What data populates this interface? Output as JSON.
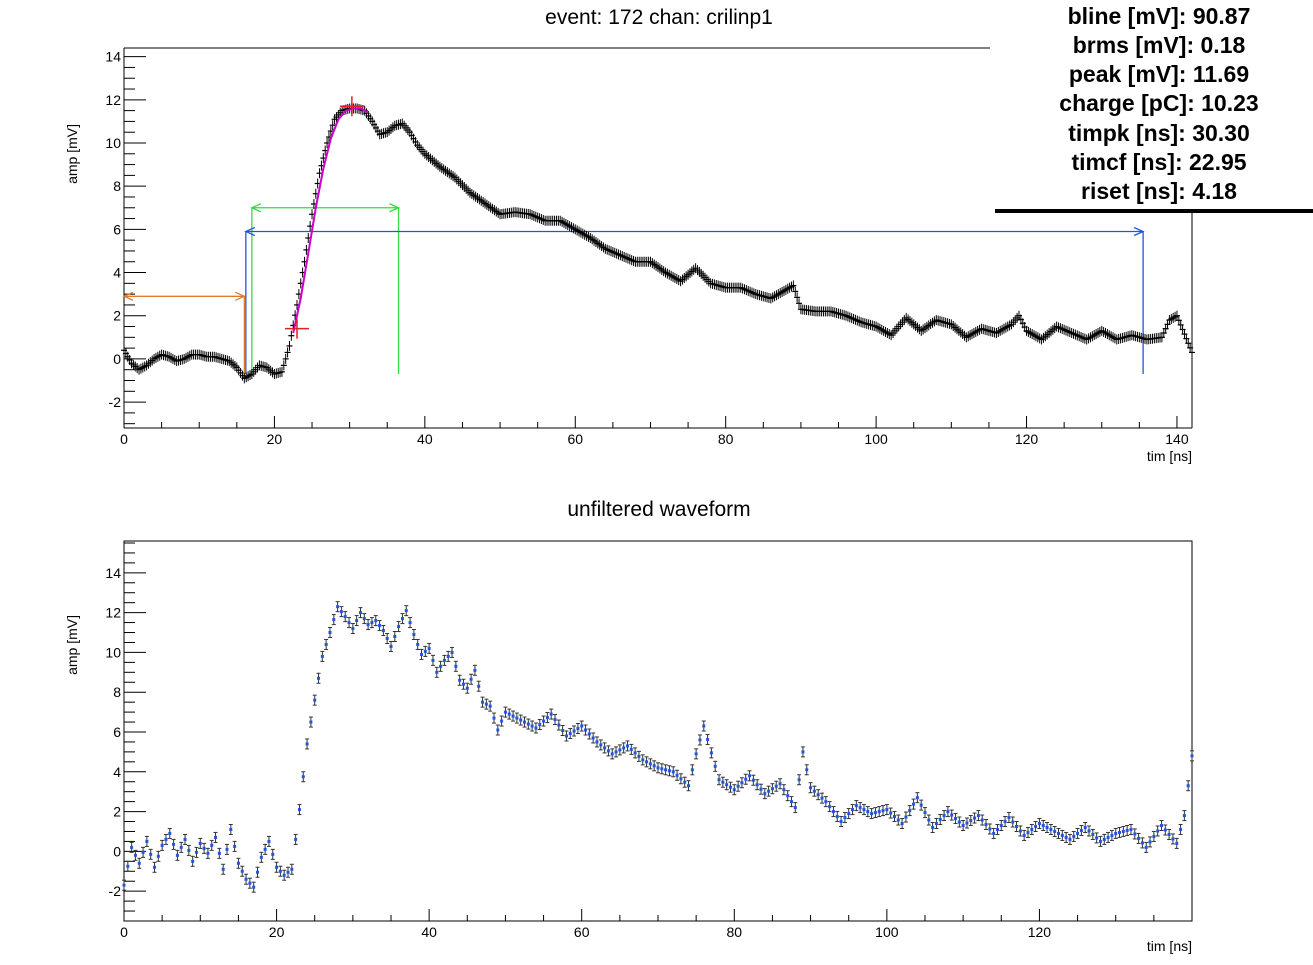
{
  "chart_data": [
    {
      "type": "scatter",
      "title": "event: 172 chan: crilinp1",
      "xlabel": "tim [ns]",
      "ylabel": "amp [mV]",
      "xlim": [
        0,
        142
      ],
      "ylim": [
        -3.2,
        14.4
      ],
      "x_ticks": [
        0,
        20,
        40,
        60,
        80,
        100,
        120,
        140
      ],
      "y_ticks": [
        -2,
        0,
        2,
        4,
        6,
        8,
        10,
        12,
        14
      ],
      "grid": false,
      "series_color": "#000000",
      "series": [
        {
          "x": [
            0,
            1,
            2,
            3,
            4,
            5,
            6,
            7,
            8,
            9,
            10,
            11,
            12,
            13,
            14,
            15,
            16,
            17,
            18,
            19,
            20,
            21,
            22,
            23,
            24,
            25,
            26,
            27,
            28,
            29,
            30,
            31,
            32,
            33,
            34,
            35,
            36,
            37,
            38,
            39,
            40,
            42,
            44,
            46,
            48,
            50,
            52,
            54,
            56,
            58,
            60,
            62,
            64,
            66,
            68,
            70,
            72,
            74,
            76,
            78,
            80,
            82,
            84,
            86,
            88,
            89,
            90,
            92,
            94,
            96,
            98,
            100,
            102,
            104,
            106,
            108,
            110,
            112,
            114,
            116,
            118,
            119,
            120,
            122,
            124,
            126,
            128,
            130,
            132,
            134,
            136,
            138,
            139,
            140,
            142
          ],
          "y": [
            0.4,
            -0.2,
            -0.5,
            -0.3,
            0.0,
            0.2,
            0.1,
            -0.1,
            0.0,
            0.2,
            0.2,
            0.1,
            0.1,
            0.0,
            -0.1,
            -0.4,
            -0.9,
            -0.7,
            -0.3,
            -0.4,
            -0.7,
            -0.6,
            0.6,
            2.5,
            4.5,
            6.7,
            8.6,
            10.0,
            11.1,
            11.5,
            11.6,
            11.6,
            11.5,
            11.0,
            10.4,
            10.5,
            10.8,
            10.9,
            10.5,
            9.9,
            9.5,
            8.9,
            8.4,
            7.7,
            7.2,
            6.7,
            6.8,
            6.7,
            6.4,
            6.4,
            6.0,
            5.6,
            5.1,
            4.8,
            4.5,
            4.5,
            4.0,
            3.6,
            4.2,
            3.5,
            3.3,
            3.3,
            3.0,
            2.8,
            3.2,
            3.4,
            2.3,
            2.2,
            2.2,
            2.0,
            1.7,
            1.5,
            1.1,
            1.9,
            1.3,
            1.8,
            1.6,
            1.0,
            1.4,
            1.2,
            1.6,
            2.0,
            1.3,
            0.9,
            1.5,
            1.2,
            0.9,
            1.3,
            0.9,
            1.1,
            0.9,
            1.0,
            1.8,
            2.0,
            0.3
          ]
        }
      ],
      "fit": {
        "color": "#cc00cc",
        "x": [
          22.5,
          23.5,
          24.5,
          25.5,
          26.5,
          27.5,
          28.5,
          29.5,
          30.5,
          31.5,
          32.5
        ],
        "y": [
          1.2,
          2.8,
          4.9,
          7.0,
          8.8,
          10.2,
          11.1,
          11.5,
          11.6,
          11.6,
          11.4
        ]
      },
      "markers": {
        "color": "#dd2222",
        "points": [
          {
            "x": 23.0,
            "y": 1.4
          },
          {
            "x": 30.3,
            "y": 11.7
          }
        ]
      },
      "annotations": [
        {
          "type": "double-arrow",
          "color": "#e07a30",
          "x1": 0,
          "x2": 16,
          "y": 2.9,
          "vline_x": 16,
          "vline_y_bottom": -0.9
        },
        {
          "type": "double-arrow",
          "color": "#33dd44",
          "x1": 17,
          "x2": 36.5,
          "y": 7.0,
          "vline_x1": 17,
          "vline_x2": 36.5,
          "vline_y_bottom": -0.7
        },
        {
          "type": "double-arrow",
          "color": "#2255dd",
          "x1": 16.2,
          "x2": 135.5,
          "y": 5.9,
          "vline_x1": 16.2,
          "vline_x2": 135.5,
          "vline_y_bottom": -0.7
        }
      ]
    },
    {
      "type": "scatter",
      "title": "unfiltered waveform",
      "xlabel": "tim [ns]",
      "ylabel": "amp [mV]",
      "xlim": [
        0,
        140
      ],
      "ylim": [
        -3.5,
        15.6
      ],
      "x_ticks": [
        0,
        20,
        40,
        60,
        80,
        100,
        120
      ],
      "y_ticks": [
        -2,
        0,
        2,
        4,
        6,
        8,
        10,
        12,
        14
      ],
      "grid": false,
      "series_color": "#2255dd",
      "series": [
        {
          "x": [
            0,
            1,
            2,
            3,
            4,
            5,
            6,
            7,
            8,
            9,
            10,
            11,
            12,
            13,
            14,
            15,
            16,
            17,
            18,
            19,
            20,
            21,
            22,
            23,
            24,
            25,
            26,
            27,
            28,
            29,
            30,
            31,
            32,
            33,
            34,
            35,
            36,
            37,
            38,
            39,
            40,
            41,
            42,
            43,
            44,
            45,
            46,
            47,
            48,
            49,
            50,
            52,
            54,
            56,
            58,
            60,
            62,
            64,
            66,
            68,
            70,
            72,
            74,
            75,
            76,
            78,
            80,
            82,
            84,
            86,
            88,
            89,
            90,
            92,
            94,
            96,
            98,
            100,
            102,
            104,
            106,
            108,
            110,
            112,
            114,
            116,
            118,
            120,
            122,
            124,
            126,
            128,
            130,
            132,
            134,
            136,
            138,
            139,
            140
          ],
          "y": [
            -1.7,
            0.2,
            -0.6,
            0.5,
            -0.8,
            0.3,
            0.9,
            -0.2,
            0.6,
            -0.5,
            0.4,
            -0.1,
            0.7,
            -0.9,
            1.1,
            -0.6,
            -1.4,
            -1.8,
            -0.3,
            0.5,
            -0.8,
            -1.2,
            -0.9,
            2.1,
            5.4,
            7.6,
            9.8,
            11.0,
            12.3,
            11.8,
            11.2,
            12.0,
            11.4,
            11.6,
            11.1,
            10.3,
            11.3,
            12.1,
            10.9,
            9.9,
            10.2,
            9.0,
            9.6,
            10.0,
            8.6,
            8.2,
            9.1,
            7.5,
            7.3,
            6.1,
            7.0,
            6.6,
            6.2,
            6.9,
            5.8,
            6.3,
            5.5,
            4.9,
            5.3,
            4.6,
            4.2,
            4.0,
            3.3,
            4.9,
            6.3,
            3.6,
            3.1,
            3.8,
            2.9,
            3.4,
            2.2,
            5.0,
            3.2,
            2.5,
            1.5,
            2.3,
            1.9,
            2.1,
            1.4,
            2.7,
            1.2,
            2.0,
            1.3,
            1.8,
            0.9,
            1.7,
            0.8,
            1.4,
            1.0,
            0.6,
            1.2,
            0.5,
            0.9,
            1.1,
            0.2,
            1.3,
            0.4,
            1.8,
            4.8
          ]
        }
      ]
    }
  ],
  "stats": {
    "lines": [
      "bline [mV]: 90.87",
      "brms [mV]: 0.18",
      "peak [mV]: 11.69",
      "charge [pC]: 10.23",
      "timpk [ns]: 30.30",
      "timcf [ns]: 22.95",
      "riset [ns]: 4.18"
    ]
  }
}
